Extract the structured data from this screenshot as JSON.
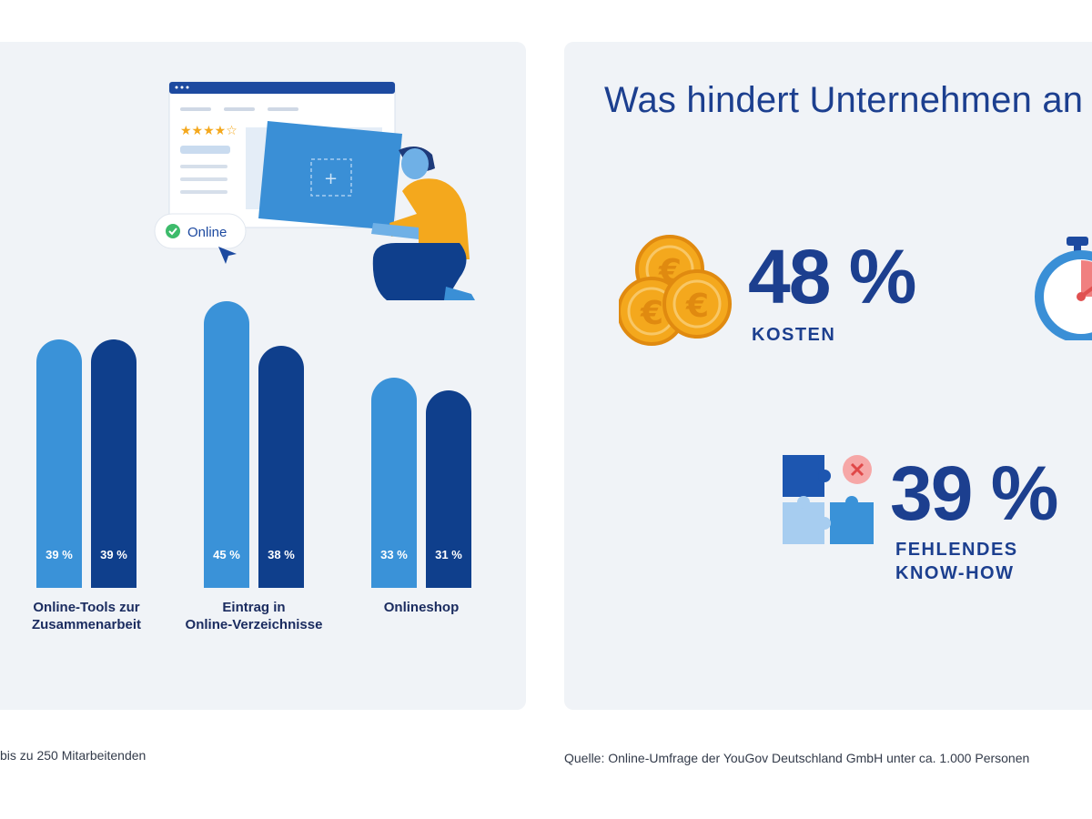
{
  "colors": {
    "light_bar": "#3a92d8",
    "dark_bar": "#0f3f8c",
    "panel_bg": "#f0f3f7",
    "title_blue": "#1c3f8f",
    "coin_orange": "#f4a81d"
  },
  "illustration": {
    "online_badge": "Online"
  },
  "chart_data": {
    "type": "bar",
    "categories": [
      "Online-Tools zur Zusammenarbeit",
      "Eintrag in Online-Verzeichnisse",
      "Onlineshop"
    ],
    "category_lines": [
      [
        "Online-Tools zur",
        "Zusammenarbeit"
      ],
      [
        "Eintrag in",
        "Online-Verzeichnisse"
      ],
      [
        "Onlineshop"
      ]
    ],
    "series": [
      {
        "name": "light",
        "values": [
          39,
          45,
          33
        ],
        "labels": [
          "39 %",
          "45 %",
          "33 %"
        ]
      },
      {
        "name": "dark",
        "values": [
          39,
          38,
          31
        ],
        "labels": [
          "39 %",
          "38 %",
          "31 %"
        ]
      }
    ],
    "ylim": [
      0,
      45
    ],
    "note": "dark bar of first group drawn equal height to light bar"
  },
  "right_panel": {
    "title": "Was hindert Unternehmen an",
    "stats": [
      {
        "value": "48 %",
        "label": "KOSTEN",
        "icon": "euro-coins-icon"
      },
      {
        "value": "39 %",
        "label_lines": [
          "FEHLENDES",
          "KNOW-HOW"
        ],
        "icon": "puzzle-icon"
      }
    ],
    "partial_icon": "stopwatch-icon"
  },
  "footnotes": {
    "left": "bis zu 250 Mitarbeitenden",
    "right": "Quelle: Online-Umfrage der YouGov Deutschland GmbH unter ca. 1.000 Personen"
  }
}
